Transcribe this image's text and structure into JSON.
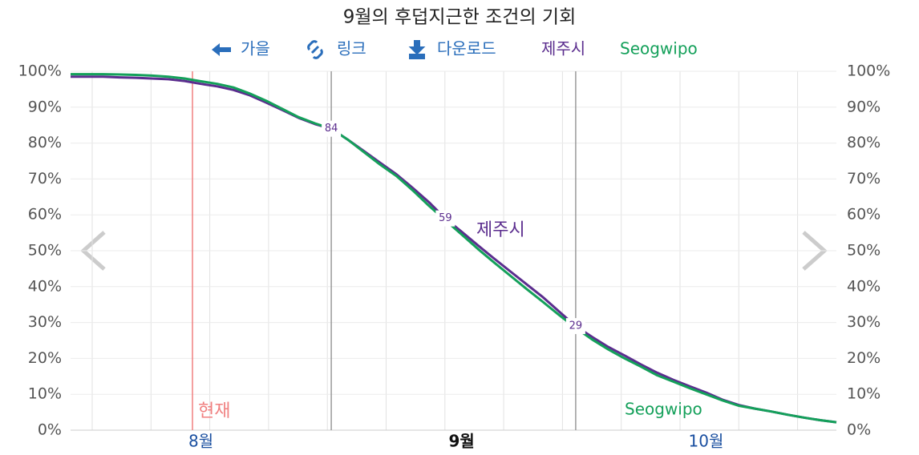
{
  "chart_data": {
    "type": "line",
    "title": "9월의 후덥지근한 조건의 기회",
    "toolbar": [
      "가을",
      "링크",
      "다운로드"
    ],
    "now_label": "현재",
    "categories": [
      null,
      null,
      null,
      null,
      null,
      null,
      null,
      null,
      "8월",
      null,
      null,
      null,
      null,
      null,
      null,
      null,
      null,
      null,
      null,
      null,
      null,
      null,
      null,
      null,
      "9월",
      null,
      null,
      null,
      null,
      null,
      null,
      null,
      null,
      null,
      null,
      null,
      null,
      null,
      null,
      "10월",
      null,
      null,
      null,
      null,
      null,
      null,
      null,
      null
    ],
    "series": [
      {
        "name": "제주시",
        "color": "#5b2d8e",
        "values": [
          98.5,
          98.5,
          98.5,
          98.3,
          98.2,
          98.0,
          97.8,
          97.3,
          96.5,
          95.8,
          94.8,
          93.3,
          91.3,
          89.2,
          87.0,
          85.3,
          84,
          81.0,
          77.8,
          74.5,
          71.3,
          67.5,
          63.5,
          59,
          55.3,
          51.5,
          47.8,
          44.2,
          40.6,
          37,
          33,
          29,
          26.0,
          23.2,
          20.8,
          18.3,
          16.0,
          14.0,
          12.2,
          10.5,
          8.5,
          7.0,
          6.0,
          5.2,
          4.3,
          3.5,
          2.8,
          2.2
        ]
      },
      {
        "name": "Seogwipo",
        "color": "#14a05a",
        "values": [
          99.2,
          99.2,
          99.2,
          99.1,
          99.0,
          98.8,
          98.5,
          98.0,
          97.2,
          96.5,
          95.5,
          93.8,
          91.8,
          89.5,
          87.2,
          85.5,
          84,
          81.0,
          77.5,
          74.0,
          70.8,
          66.8,
          62.5,
          58.5,
          54.5,
          50.5,
          46.7,
          43,
          39.3,
          35.7,
          32,
          28.5,
          25.3,
          22.5,
          20.0,
          17.7,
          15.3,
          13.5,
          11.7,
          10.0,
          8.3,
          6.8,
          6.0,
          5.2,
          4.3,
          3.5,
          2.8,
          2.2
        ]
      }
    ],
    "annotations": [
      {
        "index": 16,
        "value": 84,
        "rule": true
      },
      {
        "index": 23,
        "value": 59,
        "rule": false
      },
      {
        "index": 31,
        "value": 29,
        "rule": true
      }
    ],
    "ylim": [
      0,
      100
    ],
    "yticks": [
      {
        "value": 0,
        "label": "0%"
      },
      {
        "value": 10,
        "label": "10%"
      },
      {
        "value": 20,
        "label": "20%"
      },
      {
        "value": 30,
        "label": "30%"
      },
      {
        "value": 40,
        "label": "40%"
      },
      {
        "value": 50,
        "label": "50%"
      },
      {
        "value": 60,
        "label": "60%"
      },
      {
        "value": 70,
        "label": "70%"
      },
      {
        "value": 80,
        "label": "80%"
      },
      {
        "value": 90,
        "label": "90%"
      },
      {
        "value": 100,
        "label": "100%"
      }
    ],
    "y2lim": [
      0,
      100
    ],
    "y2ticks": [
      {
        "value": 0,
        "label": "0%"
      },
      {
        "value": 10,
        "label": "10%"
      },
      {
        "value": 20,
        "label": "20%"
      },
      {
        "value": 30,
        "label": "30%"
      },
      {
        "value": 40,
        "label": "40%"
      },
      {
        "value": 50,
        "label": "50%"
      },
      {
        "value": 60,
        "label": "60%"
      },
      {
        "value": 70,
        "label": "70%"
      },
      {
        "value": 80,
        "label": "80%"
      },
      {
        "value": 90,
        "label": "90%"
      },
      {
        "value": 100,
        "label": "100%"
      }
    ],
    "grid": true
  }
}
